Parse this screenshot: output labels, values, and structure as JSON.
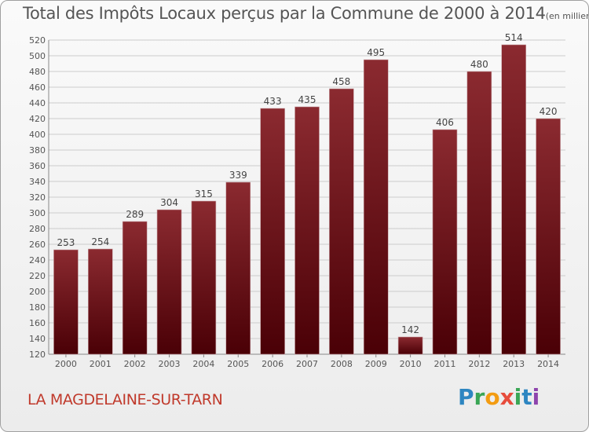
{
  "title_main": "Total des Impôts Locaux perçus par la Commune de 2000 à 2014",
  "title_unit": "(en milliers d'€)",
  "commune": "LA MAGDELAINE-SUR-TARN",
  "brand": {
    "letters": [
      "P",
      "r",
      "o",
      "x",
      "i",
      "t",
      "i"
    ],
    "colors": [
      "#2e86c1",
      "#3aa655",
      "#f39c12",
      "#e74c3c",
      "#3aa655",
      "#2e86c1",
      "#8e44ad"
    ]
  },
  "colors": {
    "bar_top": "#8b2a30",
    "bar_bottom": "#4a0006",
    "grid": "#cccccc",
    "text": "#555555",
    "title": "#555555"
  },
  "chart_data": {
    "type": "bar",
    "title": "Total des Impôts Locaux perçus par la Commune de 2000 à 2014",
    "ylabel": "en milliers d'€",
    "xlabel": "",
    "categories": [
      "2000",
      "2001",
      "2002",
      "2003",
      "2004",
      "2005",
      "2006",
      "2007",
      "2008",
      "2009",
      "2010",
      "2011",
      "2012",
      "2013",
      "2014"
    ],
    "values": [
      253,
      254,
      289,
      304,
      315,
      339,
      433,
      435,
      458,
      495,
      142,
      406,
      480,
      514,
      420
    ],
    "ylim": [
      120,
      520
    ],
    "yticks": [
      120,
      140,
      160,
      180,
      200,
      220,
      240,
      260,
      280,
      300,
      320,
      340,
      360,
      380,
      400,
      420,
      440,
      460,
      480,
      500,
      520
    ],
    "grid": true
  }
}
